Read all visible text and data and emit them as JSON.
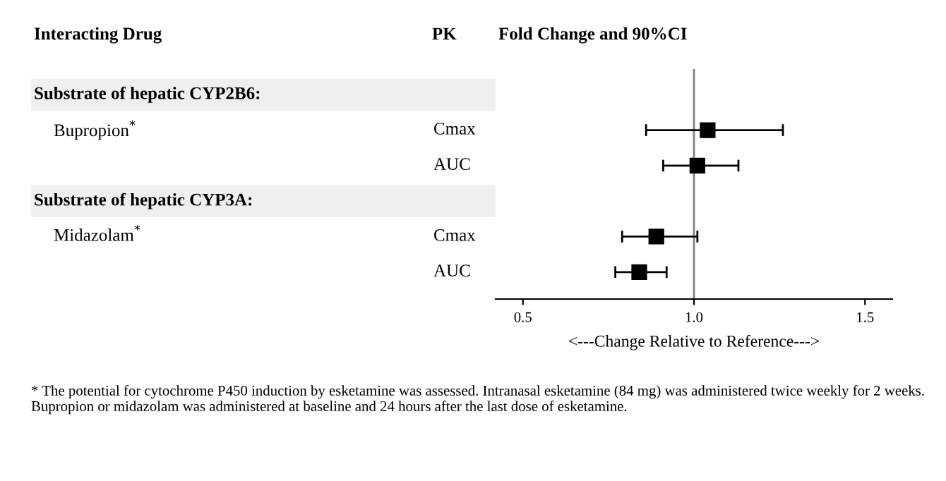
{
  "chart_data": {
    "type": "scatter",
    "orientation": "horizontal",
    "title": "Fold Change and 90%CI",
    "xlabel": "<---Change Relative to Reference--->",
    "categories": [
      null,
      "Cmax",
      "AUC",
      null,
      "Cmax",
      "AUC"
    ],
    "series": [
      {
        "color": "#000000",
        "values": [
          null,
          1.04,
          1.01,
          null,
          0.89,
          0.84
        ],
        "errors": [
          null,
          [
            0.86,
            1.26
          ],
          [
            0.91,
            1.13
          ],
          null,
          [
            0.79,
            1.01
          ],
          [
            0.77,
            0.92
          ]
        ]
      }
    ],
    "marker": "square",
    "xlim": [
      0.42,
      1.58
    ],
    "xticks": [
      0.5,
      {
        "value": 1.0,
        "label": "1.0"
      },
      1.5
    ],
    "ref_lines": [
      {
        "axis": "x",
        "value": 1.0,
        "color": "#808080"
      }
    ],
    "grid": false,
    "legend": false,
    "annotations": [
      "Interacting Drug",
      "PK",
      "Substrate of hepatic CYP2B6:",
      "Bupropion$^{*}$",
      "Substrate of hepatic CYP3A:",
      "Midazolam$^{*}$",
      "* The potential for cytochrome P450 induction by esketamine was assessed. Intranasal esketamine (84 mg) was administered twice weekly for 2 weeks. Bupropion or midazolam was administered at baseline and 24 hours after the last dose of esketamine."
    ]
  }
}
